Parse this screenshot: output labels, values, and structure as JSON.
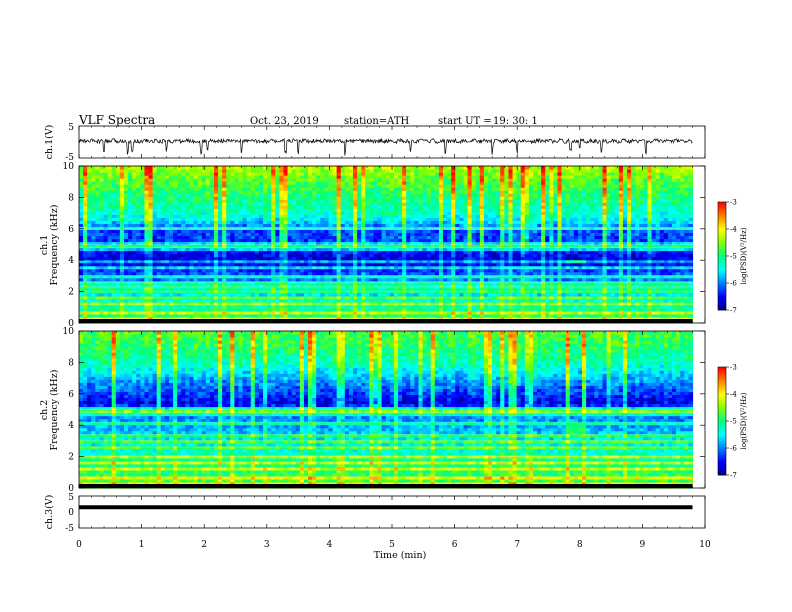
{
  "header": {
    "title": "VLF  Spectra",
    "date": "Oct. 23, 2019",
    "station": "station=ATH",
    "start_label": "start  UT  =",
    "start_value": "19: 30: 1"
  },
  "colors": {
    "waveform": "#000000",
    "colormap": [
      "#000000",
      "#00008b",
      "#0000ff",
      "#0080ff",
      "#00ffff",
      "#00ff80",
      "#80ff00",
      "#ffff00",
      "#ff8000",
      "#ff0000",
      "#ffffff"
    ]
  },
  "chart_data": [
    {
      "type": "line",
      "name": "ch1-waveform",
      "ylabel": "ch.1(V)",
      "ylim": [
        -5,
        5
      ],
      "yticks": [
        "5",
        "-5"
      ],
      "xlim": [
        0,
        10
      ],
      "x_range_data": [
        0,
        9.8
      ],
      "baseline": 0.3,
      "amplitude": 0.6,
      "spikes_at": [
        0.4,
        0.78,
        0.85,
        1.4,
        1.95,
        2.05,
        2.6,
        3.3,
        3.5,
        4.25,
        5.3,
        5.85,
        6.6,
        7.0,
        7.85,
        8.0,
        8.35,
        9.05
      ]
    },
    {
      "type": "heatmap",
      "name": "ch1-spectrogram",
      "ylabel": "ch.1\nFrequency  (kHz)",
      "ylim": [
        0,
        10
      ],
      "yticks": [
        "0",
        "2",
        "4",
        "6",
        "8",
        "10"
      ],
      "xlim": [
        0,
        10
      ],
      "x_range_data": [
        0,
        9.8
      ],
      "colorbar": {
        "label": "log(PSD)(V²/Hz)",
        "range": [
          -7,
          -3
        ],
        "ticks": [
          "-3",
          "-4",
          "-5",
          "-6",
          "-7"
        ]
      },
      "freq_profile_kHz": [
        0,
        1,
        2,
        3,
        4,
        4.5,
        5,
        6,
        6.5,
        7,
        8,
        9,
        10
      ],
      "freq_profile_log_psd": [
        -4.8,
        -5.1,
        -5.7,
        -6.1,
        -6.7,
        -6.5,
        -6.3,
        -6.2,
        -5.6,
        -5.3,
        -5.0,
        -4.7,
        -4.3
      ],
      "narrowband_lines_kHz": [
        0.3,
        0.7,
        1.2,
        1.6,
        2.0,
        2.3,
        2.6,
        3.0,
        3.5,
        3.9,
        4.8,
        5.0,
        6.0
      ],
      "event": {
        "t_min": [
          7.75,
          8.05
        ],
        "f_kHz": [
          3.8,
          4.1
        ],
        "log_psd": -5.0
      }
    },
    {
      "type": "heatmap",
      "name": "ch2-spectrogram",
      "ylabel": "ch.2\nFrequency  (kHz)",
      "ylim": [
        0,
        10
      ],
      "yticks": [
        "0",
        "2",
        "4",
        "6",
        "8",
        "10"
      ],
      "xlim": [
        0,
        10
      ],
      "x_range_data": [
        0,
        9.8
      ],
      "colorbar": {
        "label": "log(PSD)(V²/Hz)",
        "range": [
          -7,
          -3
        ],
        "ticks": [
          "-3",
          "-4",
          "-5",
          "-6",
          "-7"
        ]
      },
      "freq_profile_kHz": [
        0,
        1,
        2,
        2.5,
        3,
        4,
        5,
        5.5,
        6,
        7,
        8,
        9,
        10
      ],
      "freq_profile_log_psd": [
        -4.6,
        -4.9,
        -5.1,
        -5.4,
        -5.5,
        -5.9,
        -6.0,
        -6.6,
        -6.3,
        -5.8,
        -5.2,
        -4.9,
        -4.7
      ],
      "narrowband_lines_kHz": [
        0.3,
        0.7,
        1.2,
        1.6,
        2.0,
        2.6,
        3.0,
        3.4,
        4.2,
        4.8,
        5.0
      ],
      "event": {
        "t_min": [
          7.75,
          8.05
        ],
        "f_kHz": [
          3.4,
          4.3
        ],
        "log_psd": -4.9
      }
    },
    {
      "type": "line",
      "name": "ch3-waveform",
      "ylabel": "ch.3(V)",
      "ylim": [
        -5,
        5
      ],
      "yticks": [
        "5",
        "0",
        "-5"
      ],
      "xlim": [
        0,
        10
      ],
      "x_range_data": [
        0,
        9.8
      ],
      "baseline": 1.5,
      "amplitude": 0.05
    }
  ],
  "x_axis": {
    "label": "Time  (min)",
    "ticks": [
      "0",
      "1",
      "2",
      "3",
      "4",
      "5",
      "6",
      "7",
      "8",
      "9",
      "10"
    ]
  }
}
